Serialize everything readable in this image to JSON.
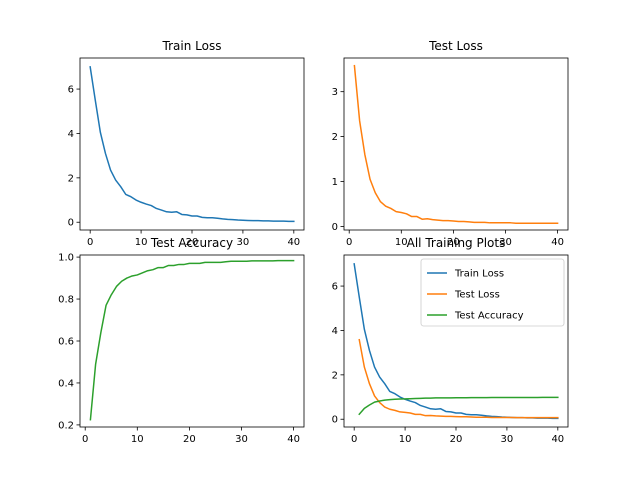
{
  "figure": {
    "width": 640,
    "height": 480
  },
  "colors": {
    "train_loss": "#1f77b4",
    "test_loss": "#ff7f0e",
    "test_accuracy": "#2ca02c"
  },
  "chart_data": [
    {
      "type": "line",
      "title": "Train Loss",
      "xlabel": "",
      "ylabel": "",
      "xlim": [
        -2,
        42
      ],
      "ylim": [
        -0.35,
        7.4
      ],
      "xticks": [
        0,
        10,
        20,
        30,
        40
      ],
      "yticks": [
        0,
        2,
        4,
        6
      ],
      "legend": false,
      "series": [
        {
          "key": "train_loss",
          "x": [
            0,
            1,
            2,
            3,
            4,
            5,
            6,
            7,
            8,
            9,
            10,
            11,
            12,
            13,
            14,
            15,
            16,
            17,
            18,
            19,
            20,
            21,
            22,
            23,
            24,
            25,
            26,
            27,
            28,
            29,
            30,
            31,
            32,
            33,
            34,
            35,
            36,
            37,
            38,
            39,
            40
          ],
          "values": [
            7.0,
            5.5,
            4.05,
            3.1,
            2.35,
            1.9,
            1.6,
            1.25,
            1.15,
            1.0,
            0.9,
            0.82,
            0.75,
            0.62,
            0.55,
            0.47,
            0.45,
            0.47,
            0.35,
            0.33,
            0.28,
            0.28,
            0.22,
            0.2,
            0.2,
            0.18,
            0.15,
            0.13,
            0.12,
            0.1,
            0.09,
            0.08,
            0.07,
            0.07,
            0.06,
            0.06,
            0.05,
            0.05,
            0.05,
            0.04,
            0.04
          ]
        }
      ]
    },
    {
      "type": "line",
      "title": "Test Loss",
      "xlabel": "",
      "ylabel": "",
      "xlim": [
        -1,
        42
      ],
      "ylim": [
        -0.08,
        3.75
      ],
      "xticks": [
        0,
        10,
        20,
        30,
        40
      ],
      "yticks": [
        0,
        1,
        2,
        3
      ],
      "legend": false,
      "series": [
        {
          "key": "test_loss",
          "x": [
            1,
            2,
            3,
            4,
            5,
            6,
            7,
            8,
            9,
            10,
            11,
            12,
            13,
            14,
            15,
            16,
            17,
            18,
            19,
            20,
            21,
            22,
            23,
            24,
            25,
            26,
            27,
            28,
            29,
            30,
            31,
            32,
            33,
            34,
            35,
            36,
            37,
            38,
            39,
            40
          ],
          "values": [
            3.58,
            2.35,
            1.6,
            1.05,
            0.75,
            0.55,
            0.45,
            0.4,
            0.33,
            0.31,
            0.28,
            0.22,
            0.22,
            0.16,
            0.17,
            0.15,
            0.14,
            0.13,
            0.13,
            0.12,
            0.11,
            0.11,
            0.1,
            0.09,
            0.09,
            0.09,
            0.08,
            0.08,
            0.08,
            0.08,
            0.08,
            0.07,
            0.07,
            0.07,
            0.07,
            0.07,
            0.07,
            0.07,
            0.07,
            0.07
          ]
        }
      ]
    },
    {
      "type": "line",
      "title": "Test Accuracy",
      "xlabel": "",
      "ylabel": "",
      "xlim": [
        -1,
        42
      ],
      "ylim": [
        0.19,
        1.01
      ],
      "xticks": [
        0,
        10,
        20,
        30,
        40
      ],
      "yticks": [
        0.2,
        0.4,
        0.6,
        0.8,
        1.0
      ],
      "ytick_labels": [
        "0.2",
        "0.4",
        "0.6",
        "0.8",
        "1.0"
      ],
      "legend": false,
      "series": [
        {
          "key": "test_accuracy",
          "x": [
            1,
            2,
            3,
            4,
            5,
            6,
            7,
            8,
            9,
            10,
            11,
            12,
            13,
            14,
            15,
            16,
            17,
            18,
            19,
            20,
            21,
            22,
            23,
            24,
            25,
            26,
            27,
            28,
            29,
            30,
            31,
            32,
            33,
            34,
            35,
            36,
            37,
            38,
            39,
            40
          ],
          "values": [
            0.225,
            0.49,
            0.64,
            0.77,
            0.82,
            0.86,
            0.885,
            0.9,
            0.91,
            0.915,
            0.925,
            0.935,
            0.94,
            0.95,
            0.95,
            0.96,
            0.96,
            0.965,
            0.965,
            0.97,
            0.97,
            0.97,
            0.975,
            0.975,
            0.975,
            0.975,
            0.978,
            0.98,
            0.98,
            0.98,
            0.98,
            0.982,
            0.982,
            0.982,
            0.982,
            0.982,
            0.983,
            0.983,
            0.983,
            0.983
          ]
        }
      ]
    },
    {
      "type": "line",
      "title": "All Training Plots",
      "xlabel": "",
      "ylabel": "",
      "xlim": [
        -2,
        42
      ],
      "ylim": [
        -0.35,
        7.4
      ],
      "xticks": [
        0,
        10,
        20,
        30,
        40
      ],
      "yticks": [
        0,
        2,
        4,
        6
      ],
      "legend": "top-right",
      "series": [
        {
          "key": "train_loss",
          "name": "Train Loss",
          "x": [
            0,
            1,
            2,
            3,
            4,
            5,
            6,
            7,
            8,
            9,
            10,
            11,
            12,
            13,
            14,
            15,
            16,
            17,
            18,
            19,
            20,
            21,
            22,
            23,
            24,
            25,
            26,
            27,
            28,
            29,
            30,
            31,
            32,
            33,
            34,
            35,
            36,
            37,
            38,
            39,
            40
          ],
          "values": [
            7.0,
            5.5,
            4.05,
            3.1,
            2.35,
            1.9,
            1.6,
            1.25,
            1.15,
            1.0,
            0.9,
            0.82,
            0.75,
            0.62,
            0.55,
            0.47,
            0.45,
            0.47,
            0.35,
            0.33,
            0.28,
            0.28,
            0.22,
            0.2,
            0.2,
            0.18,
            0.15,
            0.13,
            0.12,
            0.1,
            0.09,
            0.08,
            0.07,
            0.07,
            0.06,
            0.06,
            0.05,
            0.05,
            0.05,
            0.04,
            0.04
          ]
        },
        {
          "key": "test_loss",
          "name": "Test Loss",
          "x": [
            1,
            2,
            3,
            4,
            5,
            6,
            7,
            8,
            9,
            10,
            11,
            12,
            13,
            14,
            15,
            16,
            17,
            18,
            19,
            20,
            21,
            22,
            23,
            24,
            25,
            26,
            27,
            28,
            29,
            30,
            31,
            32,
            33,
            34,
            35,
            36,
            37,
            38,
            39,
            40
          ],
          "values": [
            3.58,
            2.35,
            1.6,
            1.05,
            0.75,
            0.55,
            0.45,
            0.4,
            0.33,
            0.31,
            0.28,
            0.22,
            0.22,
            0.16,
            0.17,
            0.15,
            0.14,
            0.13,
            0.13,
            0.12,
            0.11,
            0.11,
            0.1,
            0.09,
            0.09,
            0.09,
            0.08,
            0.08,
            0.08,
            0.08,
            0.08,
            0.07,
            0.07,
            0.07,
            0.07,
            0.07,
            0.07,
            0.07,
            0.07,
            0.07
          ]
        },
        {
          "key": "test_accuracy",
          "name": "Test Accuracy",
          "x": [
            1,
            2,
            3,
            4,
            5,
            6,
            7,
            8,
            9,
            10,
            11,
            12,
            13,
            14,
            15,
            16,
            17,
            18,
            19,
            20,
            21,
            22,
            23,
            24,
            25,
            26,
            27,
            28,
            29,
            30,
            31,
            32,
            33,
            34,
            35,
            36,
            37,
            38,
            39,
            40
          ],
          "values": [
            0.225,
            0.49,
            0.64,
            0.77,
            0.82,
            0.86,
            0.885,
            0.9,
            0.91,
            0.915,
            0.925,
            0.935,
            0.94,
            0.95,
            0.95,
            0.96,
            0.96,
            0.965,
            0.965,
            0.97,
            0.97,
            0.97,
            0.975,
            0.975,
            0.975,
            0.975,
            0.978,
            0.98,
            0.98,
            0.98,
            0.98,
            0.982,
            0.982,
            0.982,
            0.982,
            0.982,
            0.983,
            0.983,
            0.983,
            0.983
          ]
        }
      ]
    }
  ]
}
